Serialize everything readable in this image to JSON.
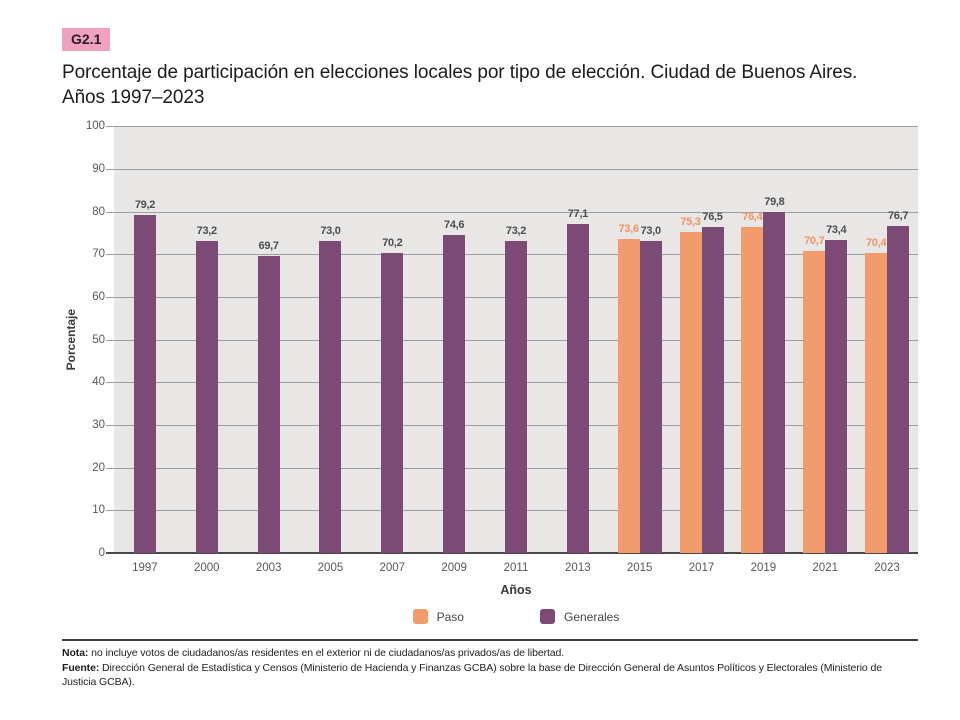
{
  "header": {
    "badge": "G2.1",
    "badge_color": "#f0a1bf",
    "title_line1": "Porcentaje de participación en elecciones locales por tipo de elección. Ciudad de Buenos Aires.",
    "title_line2": "Años 1997–2023"
  },
  "chart_data": {
    "type": "bar",
    "title": "Porcentaje de participación en elecciones locales por tipo de elección. Ciudad de Buenos Aires. Años 1997–2023",
    "xlabel": "Años",
    "ylabel": "Porcentaje",
    "ylim": [
      0,
      100
    ],
    "yticks": [
      0,
      10,
      20,
      30,
      40,
      50,
      60,
      70,
      80,
      90,
      100
    ],
    "grid": true,
    "plot_background": "#e8e7e5",
    "legend_position": "bottom",
    "decimal_separator": ",",
    "categories": [
      "1997",
      "2000",
      "2003",
      "2005",
      "2007",
      "2009",
      "2011",
      "2013",
      "2015",
      "2017",
      "2019",
      "2021",
      "2023"
    ],
    "series": [
      {
        "name": "Paso",
        "color": "#f29b6d",
        "label_color": "#ef9468",
        "values": [
          null,
          null,
          null,
          null,
          null,
          null,
          null,
          null,
          73.6,
          75.3,
          76.4,
          70.7,
          70.4
        ]
      },
      {
        "name": "Generales",
        "color": "#7b4a77",
        "label_color": "#4d4d4d",
        "values": [
          79.2,
          73.2,
          69.7,
          73.0,
          70.2,
          74.6,
          73.2,
          77.1,
          73.0,
          76.5,
          79.8,
          73.4,
          76.7
        ]
      }
    ]
  },
  "footer": {
    "note_label": "Nota:",
    "note_text": "no incluye votos de ciudadanos/as residentes en el exterior ni de ciudadanos/as privados/as de libertad.",
    "source_label": "Fuente:",
    "source_text": "Dirección General de Estadística y Censos (Ministerio de Hacienda y Finanzas GCBA) sobre la base de Dirección General de Asuntos Políticos y Electorales (Ministerio de Justicia GCBA)."
  }
}
